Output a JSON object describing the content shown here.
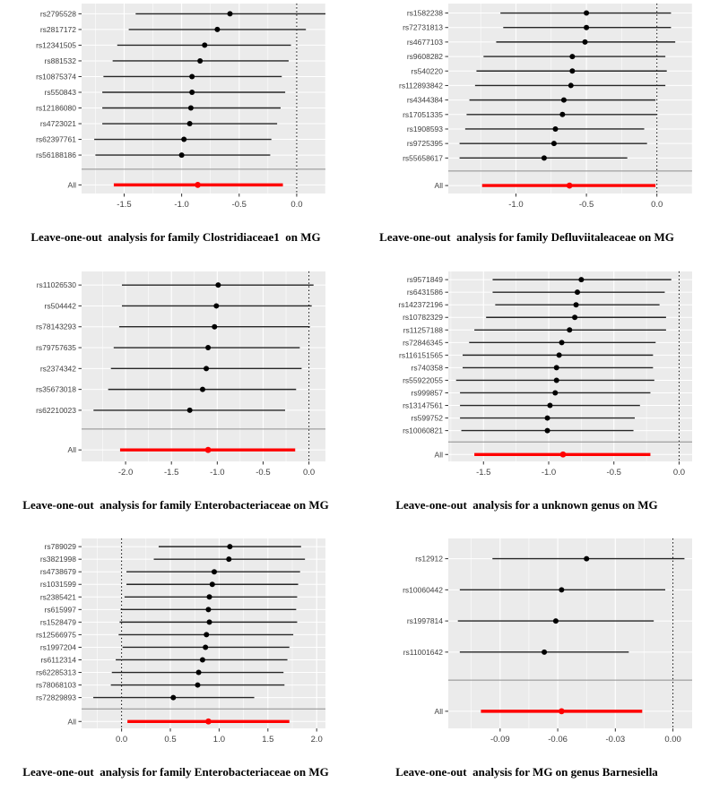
{
  "colors": {
    "page_background": "#FFFFFF",
    "panel_background": "#EBEBEB",
    "gridline": "#FFFFFF",
    "ci_line": "#262626",
    "point": "#000000",
    "all_row": "#FF0000",
    "separator_line": "#8C8C8C",
    "zero_line": "#000000",
    "axis_text": "#404040",
    "axis_tick": "#333333",
    "title_text": "#000000"
  },
  "chart_data": [
    {
      "type": "forest",
      "title": "Leave-one-out  analysis for family Clostridiaceae1  on MG",
      "xlim": [
        -1.87,
        0.25
      ],
      "zero_line": 0,
      "tick_values": [
        -1.5,
        -1.0,
        -0.5,
        0.0
      ],
      "tick_labels": [
        "-1.5",
        "-1.0",
        "-0.5",
        "0.0"
      ],
      "rows": [
        {
          "label": "rs2795528",
          "est": -0.58,
          "lo": -1.4,
          "hi": 0.25
        },
        {
          "label": "rs2817172",
          "est": -0.69,
          "lo": -1.46,
          "hi": 0.08
        },
        {
          "label": "rs12341505",
          "est": -0.8,
          "lo": -1.56,
          "hi": -0.05
        },
        {
          "label": "rs881532",
          "est": -0.84,
          "lo": -1.6,
          "hi": -0.07
        },
        {
          "label": "rs10875374",
          "est": -0.91,
          "lo": -1.68,
          "hi": -0.13
        },
        {
          "label": "rs550843",
          "est": -0.91,
          "lo": -1.69,
          "hi": -0.1
        },
        {
          "label": "rs12186080",
          "est": -0.92,
          "lo": -1.69,
          "hi": -0.14
        },
        {
          "label": "rs4723021",
          "est": -0.93,
          "lo": -1.69,
          "hi": -0.17
        },
        {
          "label": "rs62397761",
          "est": -0.98,
          "lo": -1.76,
          "hi": -0.22
        },
        {
          "label": "rs56188186",
          "est": -1.0,
          "lo": -1.75,
          "hi": -0.23
        }
      ],
      "summary": {
        "label": "All",
        "est": -0.86,
        "lo": -1.59,
        "hi": -0.12
      }
    },
    {
      "type": "forest",
      "title": "Leave-one-out  analysis for family Defluviitaleaceae on MG",
      "xlim": [
        -1.48,
        0.25
      ],
      "zero_line": 0,
      "tick_values": [
        -1.0,
        -0.5,
        0.0
      ],
      "tick_labels": [
        "-1.0",
        "-0.5",
        "0.0"
      ],
      "rows": [
        {
          "label": "rs1582238",
          "est": -0.5,
          "lo": -1.11,
          "hi": 0.1
        },
        {
          "label": "rs72731813",
          "est": -0.5,
          "lo": -1.09,
          "hi": 0.1
        },
        {
          "label": "rs4677103",
          "est": -0.51,
          "lo": -1.14,
          "hi": 0.13
        },
        {
          "label": "rs9608282",
          "est": -0.6,
          "lo": -1.23,
          "hi": 0.06
        },
        {
          "label": "rs540220",
          "est": -0.6,
          "lo": -1.28,
          "hi": 0.07
        },
        {
          "label": "rs112893842",
          "est": -0.61,
          "lo": -1.29,
          "hi": 0.06
        },
        {
          "label": "rs4344384",
          "est": -0.66,
          "lo": -1.33,
          "hi": -0.01
        },
        {
          "label": "rs17051335",
          "est": -0.67,
          "lo": -1.35,
          "hi": 0.0
        },
        {
          "label": "rs1908593",
          "est": -0.72,
          "lo": -1.36,
          "hi": -0.09
        },
        {
          "label": "rs9725395",
          "est": -0.73,
          "lo": -1.4,
          "hi": -0.07
        },
        {
          "label": "rs55658617",
          "est": -0.8,
          "lo": -1.4,
          "hi": -0.21
        }
      ],
      "summary": {
        "label": "All",
        "est": -0.62,
        "lo": -1.24,
        "hi": -0.01
      }
    },
    {
      "type": "forest",
      "title": "Leave-one-out  analysis for family Enterobacteriaceae on MG",
      "xlim": [
        -2.48,
        0.18
      ],
      "zero_line": 0,
      "tick_values": [
        -2.0,
        -1.5,
        -1.0,
        -0.5,
        0.0
      ],
      "tick_labels": [
        "-2.0",
        "-1.5",
        "-1.0",
        "-0.5",
        "0.0"
      ],
      "rows": [
        {
          "label": "rs11026530",
          "est": -0.99,
          "lo": -2.04,
          "hi": 0.05
        },
        {
          "label": "rs504442",
          "est": -1.01,
          "lo": -2.04,
          "hi": 0.03
        },
        {
          "label": "rs78143293",
          "est": -1.03,
          "lo": -2.07,
          "hi": 0.01
        },
        {
          "label": "rs79757635",
          "est": -1.1,
          "lo": -2.13,
          "hi": -0.1
        },
        {
          "label": "rs2374342",
          "est": -1.12,
          "lo": -2.16,
          "hi": -0.08
        },
        {
          "label": "rs35673018",
          "est": -1.16,
          "lo": -2.19,
          "hi": -0.14
        },
        {
          "label": "rs62210023",
          "est": -1.3,
          "lo": -2.35,
          "hi": -0.26
        }
      ],
      "summary": {
        "label": "All",
        "est": -1.1,
        "lo": -2.06,
        "hi": -0.15
      }
    },
    {
      "type": "forest",
      "title": "Leave-one-out  analysis for a unknown genus on MG",
      "xlim": [
        -1.77,
        0.1
      ],
      "zero_line": 0,
      "tick_values": [
        -1.5,
        -1.0,
        -0.5,
        0.0
      ],
      "tick_labels": [
        "-1.5",
        "-1.0",
        "-0.5",
        "0.0"
      ],
      "rows": [
        {
          "label": "rs9571849",
          "est": -0.75,
          "lo": -1.43,
          "hi": -0.06
        },
        {
          "label": "rs6431586",
          "est": -0.78,
          "lo": -1.43,
          "hi": -0.11
        },
        {
          "label": "rs142372196",
          "est": -0.79,
          "lo": -1.41,
          "hi": -0.15
        },
        {
          "label": "rs10782329",
          "est": -0.8,
          "lo": -1.48,
          "hi": -0.1
        },
        {
          "label": "rs11257188",
          "est": -0.84,
          "lo": -1.57,
          "hi": -0.1
        },
        {
          "label": "rs72846345",
          "est": -0.9,
          "lo": -1.61,
          "hi": -0.18
        },
        {
          "label": "rs116151565",
          "est": -0.92,
          "lo": -1.66,
          "hi": -0.2
        },
        {
          "label": "rs740358",
          "est": -0.94,
          "lo": -1.66,
          "hi": -0.2
        },
        {
          "label": "rs55922055",
          "est": -0.94,
          "lo": -1.71,
          "hi": -0.19
        },
        {
          "label": "rs999857",
          "est": -0.95,
          "lo": -1.68,
          "hi": -0.22
        },
        {
          "label": "rs13147561",
          "est": -0.99,
          "lo": -1.68,
          "hi": -0.3
        },
        {
          "label": "rs599752",
          "est": -1.01,
          "lo": -1.68,
          "hi": -0.34
        },
        {
          "label": "rs10060821",
          "est": -1.01,
          "lo": -1.67,
          "hi": -0.35
        }
      ],
      "summary": {
        "label": "All",
        "est": -0.89,
        "lo": -1.57,
        "hi": -0.22
      }
    },
    {
      "type": "forest",
      "title": "Leave-one-out  analysis for family Enterobacteriaceae on MG",
      "xlim": [
        -0.41,
        2.09
      ],
      "zero_line": 0,
      "tick_values": [
        0.0,
        0.5,
        1.0,
        1.5,
        2.0
      ],
      "tick_labels": [
        "0.0",
        "0.5",
        "1.0",
        "1.5",
        "2.0"
      ],
      "rows": [
        {
          "label": "rs789029",
          "est": 1.11,
          "lo": 0.38,
          "hi": 1.84
        },
        {
          "label": "rs3821998",
          "est": 1.1,
          "lo": 0.33,
          "hi": 1.88
        },
        {
          "label": "rs4738679",
          "est": 0.95,
          "lo": 0.05,
          "hi": 1.83
        },
        {
          "label": "rs1031599",
          "est": 0.93,
          "lo": 0.05,
          "hi": 1.81
        },
        {
          "label": "rs2385421",
          "est": 0.9,
          "lo": 0.03,
          "hi": 1.8
        },
        {
          "label": "rs615997",
          "est": 0.89,
          "lo": -0.01,
          "hi": 1.79
        },
        {
          "label": "rs1528479",
          "est": 0.9,
          "lo": -0.02,
          "hi": 1.8
        },
        {
          "label": "rs12566975",
          "est": 0.87,
          "lo": -0.03,
          "hi": 1.76
        },
        {
          "label": "rs1997204",
          "est": 0.86,
          "lo": 0.01,
          "hi": 1.72
        },
        {
          "label": "rs6112314",
          "est": 0.83,
          "lo": -0.06,
          "hi": 1.7
        },
        {
          "label": "rs62285313",
          "est": 0.79,
          "lo": -0.1,
          "hi": 1.66
        },
        {
          "label": "rs78068103",
          "est": 0.78,
          "lo": -0.11,
          "hi": 1.67
        },
        {
          "label": "rs72829893",
          "est": 0.53,
          "lo": -0.29,
          "hi": 1.36
        }
      ],
      "summary": {
        "label": "All",
        "est": 0.89,
        "lo": 0.06,
        "hi": 1.72
      }
    },
    {
      "type": "forest",
      "title": "Leave-one-out  analysis for MG on genus Barnesiella",
      "xlim": [
        -0.117,
        0.01
      ],
      "zero_line": 0,
      "tick_values": [
        -0.09,
        -0.06,
        -0.03,
        0.0
      ],
      "tick_labels": [
        "-0.09",
        "-0.06",
        "-0.03",
        "0.00"
      ],
      "rows": [
        {
          "label": "rs12912",
          "est": -0.045,
          "lo": -0.094,
          "hi": 0.006
        },
        {
          "label": "rs10060442",
          "est": -0.058,
          "lo": -0.111,
          "hi": -0.004
        },
        {
          "label": "rs1997814",
          "est": -0.061,
          "lo": -0.112,
          "hi": -0.01
        },
        {
          "label": "rs11001642",
          "est": -0.067,
          "lo": -0.111,
          "hi": -0.023
        }
      ],
      "summary": {
        "label": "All",
        "est": -0.058,
        "lo": -0.1,
        "hi": -0.016
      }
    }
  ]
}
